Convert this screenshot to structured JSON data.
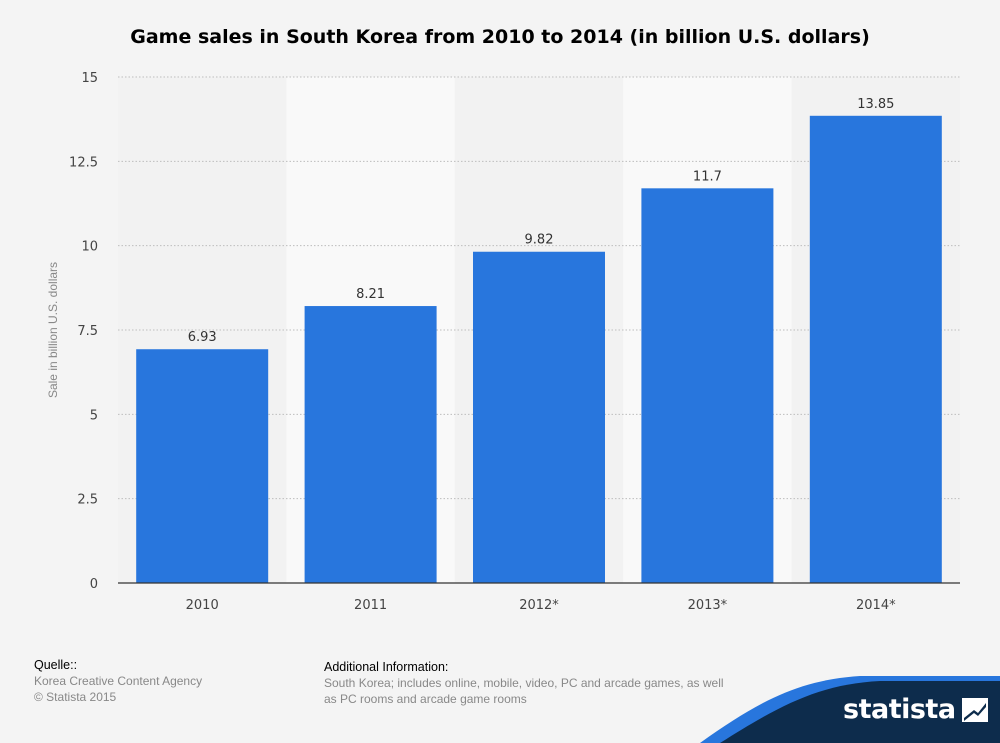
{
  "chart_data": {
    "type": "bar",
    "title": "Game sales in South Korea from 2010 to 2014 (in billion U.S. dollars)",
    "categories": [
      "2010",
      "2011",
      "2012*",
      "2013*",
      "2014*"
    ],
    "values": [
      6.93,
      8.21,
      9.82,
      11.7,
      13.85
    ],
    "value_labels": [
      "6.93",
      "8.21",
      "9.82",
      "11.7",
      "13.85"
    ],
    "xlabel": "",
    "ylabel": "Sale in billion U.S. dollars",
    "ylim": [
      0,
      15
    ],
    "yticks": [
      "0",
      "2.5",
      "5",
      "7.5",
      "10",
      "12.5",
      "15"
    ],
    "ytick_values": [
      0,
      2.5,
      5,
      7.5,
      10,
      12.5,
      15
    ],
    "bar_color": "#2876dd",
    "grid": true
  },
  "footer": {
    "source_heading": "Quelle::",
    "source_lines": [
      "Korea Creative Content Agency",
      "© Statista 2015"
    ],
    "info_heading": "Additional Information:",
    "info_text": "South Korea; includes online, mobile, video, PC and arcade games, as well as PC rooms and arcade game rooms"
  },
  "brand": {
    "name": "statista",
    "band_color": "#0d2c4c",
    "accent_color": "#2876dd"
  }
}
